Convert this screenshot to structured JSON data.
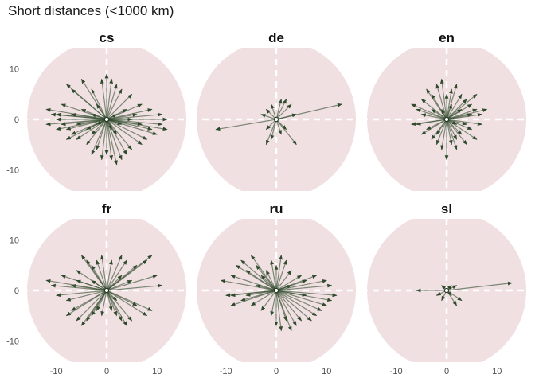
{
  "title": "Short distances (<1000 km)",
  "colors": {
    "disc": "#f0e0e2",
    "arrow": "#2f4a2c",
    "axis": "#ffffff",
    "origin": "#ffffff"
  },
  "chart_data": {
    "type": "vector-field",
    "title": "Short distances (<1000 km)",
    "xlabel": "",
    "ylabel": "",
    "xlim": [
      -15,
      15
    ],
    "ylim": [
      -16,
      16
    ],
    "x_ticks": [
      "-10",
      "0",
      "10"
    ],
    "y_ticks": [
      "10",
      "0",
      "-10"
    ],
    "x_tick_values": [
      -10,
      0,
      10
    ],
    "y_tick_values": [
      10,
      0,
      -10
    ],
    "panels": [
      {
        "name": "cs",
        "vectors": [
          [
            -12,
            2
          ],
          [
            -11,
            1
          ],
          [
            -12,
            -1
          ],
          [
            -10,
            0
          ],
          [
            -9,
            3
          ],
          [
            -8,
            -2
          ],
          [
            -7,
            1
          ],
          [
            -6,
            -1
          ],
          [
            -5,
            2
          ],
          [
            -4,
            -2
          ],
          [
            -3,
            1
          ],
          [
            -2,
            -1
          ],
          [
            -9,
            -1
          ],
          [
            -10,
            1
          ],
          [
            -8,
            7
          ],
          [
            -7,
            6
          ],
          [
            -5,
            8
          ],
          [
            -3,
            6
          ],
          [
            -1,
            8
          ],
          [
            0,
            9
          ],
          [
            1,
            8
          ],
          [
            2,
            7
          ],
          [
            3,
            6
          ],
          [
            5,
            5
          ],
          [
            7,
            3
          ],
          [
            9,
            2
          ],
          [
            11,
            1
          ],
          [
            12,
            0
          ],
          [
            11,
            -1
          ],
          [
            12,
            -2
          ],
          [
            10,
            -3
          ],
          [
            9,
            -2
          ],
          [
            8,
            -4
          ],
          [
            7,
            -5
          ],
          [
            5,
            -6
          ],
          [
            4,
            -7
          ],
          [
            3,
            -8
          ],
          [
            2,
            -9
          ],
          [
            1,
            -8
          ],
          [
            0,
            -7
          ],
          [
            -1,
            -8
          ],
          [
            -2,
            -6
          ],
          [
            -3,
            -7
          ],
          [
            -4,
            -5
          ],
          [
            -6,
            -4
          ],
          [
            -7,
            -3
          ],
          [
            -8,
            -4
          ],
          [
            -10,
            -2
          ],
          [
            2,
            1
          ],
          [
            3,
            -1
          ],
          [
            5,
            0
          ],
          [
            6,
            1
          ],
          [
            7,
            -1
          ],
          [
            4,
            2
          ],
          [
            -2,
            3
          ],
          [
            -3,
            -3
          ],
          [
            1,
            -2
          ],
          [
            2,
            -3
          ]
        ]
      },
      {
        "name": "de",
        "vectors": [
          [
            13,
            3
          ],
          [
            -12,
            -2
          ],
          [
            1,
            4
          ],
          [
            -1,
            3
          ],
          [
            2,
            4
          ],
          [
            3,
            3
          ],
          [
            4,
            1
          ],
          [
            -2,
            -2
          ],
          [
            -1,
            -4
          ],
          [
            -2,
            -5
          ],
          [
            1,
            -3
          ],
          [
            4,
            -5
          ],
          [
            2,
            -2
          ],
          [
            -3,
            1
          ],
          [
            -2,
            2
          ]
        ]
      },
      {
        "name": "en",
        "vectors": [
          [
            -7,
            3
          ],
          [
            -6,
            -1
          ],
          [
            -5,
            4
          ],
          [
            -5,
            -3
          ],
          [
            -4,
            6
          ],
          [
            -3,
            5
          ],
          [
            -3,
            -4
          ],
          [
            -2,
            7
          ],
          [
            -2,
            -5
          ],
          [
            -1,
            8
          ],
          [
            -1,
            -6
          ],
          [
            0,
            -8
          ],
          [
            0,
            5
          ],
          [
            1,
            6
          ],
          [
            1,
            -5
          ],
          [
            2,
            7
          ],
          [
            2,
            -4
          ],
          [
            3,
            5
          ],
          [
            3,
            -3
          ],
          [
            4,
            4
          ],
          [
            4,
            -5
          ],
          [
            5,
            3
          ],
          [
            5,
            -2
          ],
          [
            6,
            2
          ],
          [
            6,
            -4
          ],
          [
            7,
            1
          ],
          [
            7,
            -1
          ],
          [
            8,
            2
          ],
          [
            -4,
            -2
          ],
          [
            -5,
            1
          ],
          [
            -6,
            2
          ],
          [
            2,
            -1
          ],
          [
            3,
            2
          ],
          [
            -1,
            2
          ],
          [
            1,
            3
          ],
          [
            -2,
            -3
          ],
          [
            4,
            -1
          ],
          [
            5,
            1
          ],
          [
            -3,
            2
          ],
          [
            2,
            -6
          ],
          [
            6,
            5
          ],
          [
            -7,
            -1
          ]
        ]
      },
      {
        "name": "fr",
        "vectors": [
          [
            -12,
            2
          ],
          [
            -11,
            1
          ],
          [
            -10,
            -1
          ],
          [
            -9,
            3
          ],
          [
            -8,
            -2
          ],
          [
            -7,
            -4
          ],
          [
            -6,
            -6
          ],
          [
            -5,
            -7
          ],
          [
            -4,
            -6
          ],
          [
            -3,
            -5
          ],
          [
            -5,
            7
          ],
          [
            -4,
            6
          ],
          [
            -3,
            5
          ],
          [
            -2,
            6
          ],
          [
            -1,
            7
          ],
          [
            1,
            6
          ],
          [
            3,
            7
          ],
          [
            4,
            6
          ],
          [
            6,
            5
          ],
          [
            8,
            6
          ],
          [
            9,
            7
          ],
          [
            10,
            3
          ],
          [
            11,
            1
          ],
          [
            9,
            -4
          ],
          [
            8,
            -5
          ],
          [
            6,
            -3
          ],
          [
            5,
            -6
          ],
          [
            4,
            -7
          ],
          [
            3,
            -6
          ],
          [
            2,
            -5
          ],
          [
            1,
            -4
          ],
          [
            -1,
            -5
          ],
          [
            -2,
            -4
          ],
          [
            -6,
            2
          ],
          [
            -7,
            1
          ],
          [
            5,
            2
          ],
          [
            3,
            3
          ],
          [
            -3,
            2
          ],
          [
            2,
            -2
          ],
          [
            -8,
            -5
          ],
          [
            -6,
            4
          ]
        ]
      },
      {
        "name": "ru",
        "vectors": [
          [
            -11,
            2
          ],
          [
            -10,
            -1
          ],
          [
            -9,
            3
          ],
          [
            -9,
            -3
          ],
          [
            -8,
            5
          ],
          [
            -7,
            6
          ],
          [
            -6,
            4
          ],
          [
            -5,
            7
          ],
          [
            -4,
            5
          ],
          [
            -3,
            3
          ],
          [
            -2,
            4
          ],
          [
            -1,
            6
          ],
          [
            0,
            5
          ],
          [
            1,
            7
          ],
          [
            2,
            6
          ],
          [
            3,
            4
          ],
          [
            5,
            3
          ],
          [
            6,
            2
          ],
          [
            8,
            3
          ],
          [
            10,
            2
          ],
          [
            11,
            1
          ],
          [
            12,
            -1
          ],
          [
            11,
            -2
          ],
          [
            10,
            -3
          ],
          [
            9,
            -4
          ],
          [
            8,
            -5
          ],
          [
            7,
            -6
          ],
          [
            5,
            -6
          ],
          [
            4,
            -7
          ],
          [
            3,
            -8
          ],
          [
            2,
            -6
          ],
          [
            1,
            -8
          ],
          [
            0,
            -7
          ],
          [
            -1,
            -5
          ],
          [
            -3,
            -4
          ],
          [
            -5,
            -3
          ],
          [
            -7,
            -2
          ],
          [
            -9,
            -1
          ],
          [
            -4,
            1
          ],
          [
            3,
            1
          ],
          [
            -6,
            -1
          ],
          [
            6,
            -1
          ]
        ]
      },
      {
        "name": "sl",
        "vectors": [
          [
            13,
            1.5
          ],
          [
            -6,
            0
          ],
          [
            2,
            -3
          ],
          [
            1,
            1
          ],
          [
            -1,
            1
          ],
          [
            3,
            -2
          ],
          [
            -2,
            -1
          ],
          [
            2,
            1
          ],
          [
            -1,
            -2
          ],
          [
            1,
            -1
          ]
        ]
      }
    ]
  }
}
